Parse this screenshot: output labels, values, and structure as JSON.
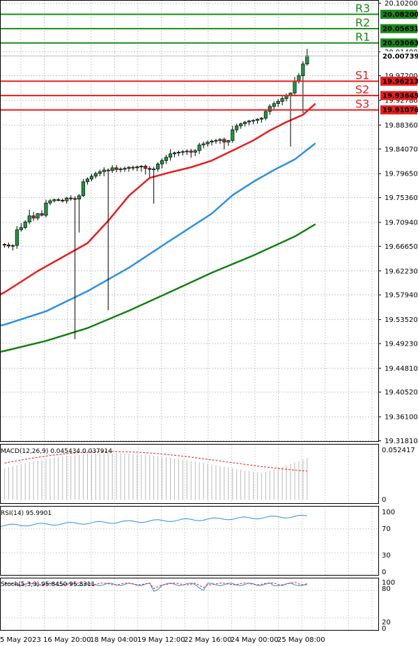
{
  "chart_data": {
    "type": "candlestick",
    "price_axis": {
      "ticks": [
        "20.10200",
        "20.01490",
        "19.97200",
        "19.92780",
        "19.88360",
        "19.84070",
        "19.79650",
        "19.75360",
        "19.70940",
        "19.66650",
        "19.62230",
        "19.57940",
        "19.53520",
        "19.49230",
        "19.44810",
        "19.40520",
        "19.36100",
        "19.31810"
      ],
      "current": "20.00739",
      "ylim": [
        19.3181,
        20.102
      ]
    },
    "levels": [
      {
        "name": "R3",
        "value": "20.08200",
        "color": "#1a8a1a"
      },
      {
        "name": "R2",
        "value": "20.05631",
        "color": "#1a8a1a"
      },
      {
        "name": "R1",
        "value": "20.03063",
        "color": "#1a8a1a"
      },
      {
        "name": "S1",
        "value": "19.96213",
        "color": "#e81c1c"
      },
      {
        "name": "S2",
        "value": "19.93645",
        "color": "#e81c1c"
      },
      {
        "name": "S3",
        "value": "19.91076",
        "color": "#e81c1c"
      }
    ],
    "moving_averages": [
      {
        "color": "#e81c1c",
        "points": [
          [
            -2,
            19.577
          ],
          [
            0,
            19.584
          ],
          [
            8,
            19.622
          ],
          [
            20,
            19.672
          ],
          [
            25,
            19.712
          ],
          [
            30,
            19.757
          ],
          [
            35,
            19.789
          ],
          [
            40,
            19.799
          ],
          [
            45,
            19.808
          ],
          [
            50,
            19.82
          ],
          [
            55,
            19.838
          ],
          [
            60,
            19.856
          ],
          [
            64,
            19.874
          ],
          [
            68,
            19.889
          ],
          [
            72,
            19.902
          ],
          [
            75,
            19.922
          ]
        ]
      },
      {
        "color": "#2b8fe6",
        "points": [
          [
            -2,
            19.523
          ],
          [
            0,
            19.526
          ],
          [
            10,
            19.55
          ],
          [
            20,
            19.586
          ],
          [
            30,
            19.628
          ],
          [
            40,
            19.677
          ],
          [
            50,
            19.725
          ],
          [
            55,
            19.758
          ],
          [
            60,
            19.782
          ],
          [
            65,
            19.803
          ],
          [
            70,
            19.822
          ],
          [
            75,
            19.851
          ]
        ]
      },
      {
        "color": "#118011",
        "points": [
          [
            -2,
            19.476
          ],
          [
            0,
            19.479
          ],
          [
            10,
            19.497
          ],
          [
            20,
            19.52
          ],
          [
            30,
            19.551
          ],
          [
            40,
            19.585
          ],
          [
            50,
            19.619
          ],
          [
            60,
            19.65
          ],
          [
            65,
            19.667
          ],
          [
            70,
            19.684
          ],
          [
            75,
            19.706
          ]
        ]
      }
    ],
    "candles": [
      [
        19.67,
        19.672,
        19.664,
        19.669
      ],
      [
        19.669,
        19.673,
        19.663,
        19.667
      ],
      [
        19.667,
        19.67,
        19.659,
        19.668
      ],
      [
        19.668,
        19.703,
        19.662,
        19.696
      ],
      [
        19.696,
        19.708,
        19.693,
        19.7
      ],
      [
        19.7,
        19.713,
        19.697,
        19.71
      ],
      [
        19.71,
        19.732,
        19.706,
        19.721
      ],
      [
        19.721,
        19.728,
        19.712,
        19.717
      ],
      [
        19.717,
        19.726,
        19.713,
        19.725
      ],
      [
        19.725,
        19.731,
        19.72,
        19.722
      ],
      [
        19.722,
        19.75,
        19.718,
        19.744
      ],
      [
        19.744,
        19.751,
        19.74,
        19.748
      ],
      [
        19.748,
        19.752,
        19.745,
        19.75
      ],
      [
        19.75,
        19.753,
        19.747,
        19.749
      ],
      [
        19.749,
        19.752,
        19.745,
        19.748
      ],
      [
        19.748,
        19.755,
        19.743,
        19.753
      ],
      [
        19.753,
        19.758,
        19.748,
        19.752
      ],
      [
        19.752,
        19.756,
        19.5,
        19.751
      ],
      [
        19.751,
        19.76,
        19.691,
        19.757
      ],
      [
        19.757,
        19.787,
        19.755,
        19.782
      ],
      [
        19.782,
        19.79,
        19.777,
        19.787
      ],
      [
        19.787,
        19.796,
        19.783,
        19.792
      ],
      [
        19.792,
        19.8,
        19.788,
        19.797
      ],
      [
        19.797,
        19.804,
        19.792,
        19.8
      ],
      [
        19.8,
        19.808,
        19.792,
        19.803
      ],
      [
        19.803,
        19.806,
        19.552,
        19.802
      ],
      [
        19.802,
        19.812,
        19.798,
        19.807
      ],
      [
        19.807,
        19.812,
        19.799,
        19.804
      ],
      [
        19.804,
        19.808,
        19.799,
        19.805
      ],
      [
        19.805,
        19.809,
        19.8,
        19.806
      ],
      [
        19.806,
        19.81,
        19.8,
        19.808
      ],
      [
        19.808,
        19.811,
        19.802,
        19.807
      ],
      [
        19.807,
        19.811,
        19.801,
        19.809
      ],
      [
        19.809,
        19.812,
        19.8,
        19.81
      ],
      [
        19.81,
        19.813,
        19.795,
        19.806
      ],
      [
        19.806,
        19.81,
        19.79,
        19.804
      ],
      [
        19.804,
        19.809,
        19.743,
        19.805
      ],
      [
        19.805,
        19.817,
        19.8,
        19.814
      ],
      [
        19.814,
        19.824,
        19.806,
        19.82
      ],
      [
        19.82,
        19.83,
        19.814,
        19.826
      ],
      [
        19.826,
        19.84,
        19.82,
        19.832
      ],
      [
        19.832,
        19.836,
        19.826,
        19.834
      ],
      [
        19.834,
        19.838,
        19.828,
        19.835
      ],
      [
        19.835,
        19.839,
        19.829,
        19.836
      ],
      [
        19.836,
        19.84,
        19.83,
        19.837
      ],
      [
        19.837,
        19.841,
        19.825,
        19.835
      ],
      [
        19.835,
        19.84,
        19.828,
        19.838
      ],
      [
        19.838,
        19.852,
        19.832,
        19.848
      ],
      [
        19.848,
        19.854,
        19.842,
        19.85
      ],
      [
        19.85,
        19.856,
        19.845,
        19.853
      ],
      [
        19.853,
        19.858,
        19.847,
        19.855
      ],
      [
        19.855,
        19.859,
        19.85,
        19.856
      ],
      [
        19.856,
        19.86,
        19.85,
        19.858
      ],
      [
        19.858,
        19.861,
        19.84,
        19.853
      ],
      [
        19.853,
        19.857,
        19.846,
        19.856
      ],
      [
        19.856,
        19.882,
        19.852,
        19.875
      ],
      [
        19.875,
        19.886,
        19.87,
        19.882
      ],
      [
        19.882,
        19.888,
        19.877,
        19.886
      ],
      [
        19.886,
        19.891,
        19.881,
        19.889
      ],
      [
        19.889,
        19.893,
        19.883,
        19.891
      ],
      [
        19.891,
        19.894,
        19.885,
        19.892
      ],
      [
        19.892,
        19.896,
        19.886,
        19.894
      ],
      [
        19.894,
        19.898,
        19.888,
        19.896
      ],
      [
        19.896,
        19.912,
        19.892,
        19.908
      ],
      [
        19.908,
        19.921,
        19.902,
        19.917
      ],
      [
        19.917,
        19.926,
        19.912,
        19.922
      ],
      [
        19.922,
        19.93,
        19.916,
        19.926
      ],
      [
        19.926,
        19.935,
        19.919,
        19.931
      ],
      [
        19.931,
        19.94,
        19.926,
        19.937
      ],
      [
        19.937,
        19.942,
        19.845,
        19.941
      ],
      [
        19.941,
        19.97,
        19.937,
        19.962
      ],
      [
        19.962,
        19.977,
        19.958,
        19.972
      ],
      [
        19.972,
        19.998,
        19.905,
        19.993
      ],
      [
        19.993,
        20.02,
        19.99,
        20.008
      ]
    ],
    "date_labels": [
      "5 May 2023",
      "16 May 20:00",
      "18 May 04:00",
      "19 May 12:00",
      "22 May 16:00",
      "24 May 00:00",
      "25 May 08:00"
    ],
    "macd": {
      "label": "MACD(12,26,9) 0.045434 0.037914",
      "axis": [
        "0.052417",
        "0"
      ]
    },
    "rsi": {
      "label": "RSI(14) 95.9901",
      "axis": [
        "100",
        "70",
        "30",
        "0"
      ]
    },
    "stoch": {
      "label": "Stoch(5,3,3) 95.8450 95.8311",
      "axis": [
        "100",
        "80",
        "20",
        "0"
      ]
    }
  }
}
